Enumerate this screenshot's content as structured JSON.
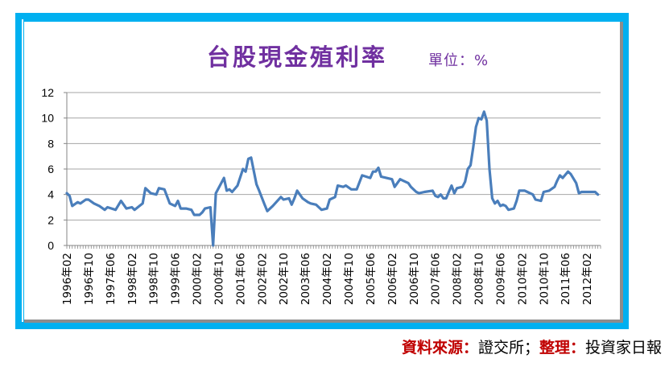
{
  "chart_data": {
    "type": "line",
    "title": "台股現金殖利率",
    "unit_label": "單位：%",
    "xlabel": "",
    "ylabel": "",
    "x_unit": "months since 1996年02",
    "xlim": [
      0,
      197
    ],
    "ylim": [
      0,
      12
    ],
    "yticks": [
      0,
      2,
      4,
      6,
      8,
      10,
      12
    ],
    "grid": true,
    "xtick_step_months": 8,
    "xtick_labels": [
      "1996年02",
      "1996年10",
      "1997年06",
      "1998年02",
      "1998年10",
      "1999年06",
      "2000年02",
      "2000年10",
      "2001年06",
      "2002年02",
      "2002年10",
      "2003年06",
      "2004年02",
      "2004年10",
      "2005年06",
      "2006年02",
      "2006年10",
      "2007年06",
      "2008年02",
      "2008年10",
      "2009年06",
      "2010年02",
      "2010年10",
      "2011年06",
      "2012年02"
    ],
    "series": [
      {
        "name": "現金殖利率",
        "color": "#4a7ebb",
        "points": [
          [
            0,
            4.1
          ],
          [
            1,
            3.9
          ],
          [
            2,
            3.1
          ],
          [
            4,
            3.4
          ],
          [
            5,
            3.3
          ],
          [
            7,
            3.6
          ],
          [
            8,
            3.6
          ],
          [
            10,
            3.3
          ],
          [
            12,
            3.1
          ],
          [
            14,
            2.8
          ],
          [
            15,
            3.0
          ],
          [
            18,
            2.8
          ],
          [
            20,
            3.5
          ],
          [
            22,
            2.9
          ],
          [
            24,
            3.0
          ],
          [
            25,
            2.8
          ],
          [
            28,
            3.3
          ],
          [
            29,
            4.5
          ],
          [
            31,
            4.1
          ],
          [
            33,
            4.0
          ],
          [
            34,
            4.5
          ],
          [
            36,
            4.4
          ],
          [
            38,
            3.3
          ],
          [
            40,
            3.1
          ],
          [
            41,
            3.5
          ],
          [
            42,
            2.9
          ],
          [
            44,
            2.9
          ],
          [
            46,
            2.8
          ],
          [
            47,
            2.4
          ],
          [
            49,
            2.4
          ],
          [
            50,
            2.6
          ],
          [
            51,
            2.9
          ],
          [
            53,
            3.0
          ],
          [
            54,
            0.0
          ],
          [
            55,
            4.1
          ],
          [
            56,
            4.5
          ],
          [
            58,
            5.3
          ],
          [
            59,
            4.3
          ],
          [
            60,
            4.4
          ],
          [
            61,
            4.2
          ],
          [
            63,
            4.7
          ],
          [
            65,
            6.0
          ],
          [
            66,
            5.8
          ],
          [
            67,
            6.8
          ],
          [
            68,
            6.9
          ],
          [
            70,
            4.8
          ],
          [
            71,
            4.3
          ],
          [
            73,
            3.2
          ],
          [
            74,
            2.7
          ],
          [
            76,
            3.1
          ],
          [
            79,
            3.8
          ],
          [
            80,
            3.6
          ],
          [
            82,
            3.7
          ],
          [
            83,
            3.2
          ],
          [
            84,
            3.7
          ],
          [
            85,
            4.3
          ],
          [
            87,
            3.7
          ],
          [
            89,
            3.4
          ],
          [
            90,
            3.3
          ],
          [
            92,
            3.2
          ],
          [
            94,
            2.8
          ],
          [
            96,
            2.9
          ],
          [
            97,
            3.6
          ],
          [
            99,
            3.8
          ],
          [
            100,
            4.7
          ],
          [
            102,
            4.6
          ],
          [
            103,
            4.7
          ],
          [
            105,
            4.4
          ],
          [
            107,
            4.4
          ],
          [
            109,
            5.5
          ],
          [
            112,
            5.3
          ],
          [
            113,
            5.8
          ],
          [
            114,
            5.8
          ],
          [
            115,
            6.1
          ],
          [
            116,
            5.4
          ],
          [
            118,
            5.3
          ],
          [
            120,
            5.2
          ],
          [
            121,
            4.6
          ],
          [
            123,
            5.2
          ],
          [
            124,
            5.1
          ],
          [
            126,
            4.9
          ],
          [
            127,
            4.6
          ],
          [
            129,
            4.2
          ],
          [
            130,
            4.1
          ],
          [
            132,
            4.2
          ],
          [
            135,
            4.3
          ],
          [
            136,
            3.9
          ],
          [
            137,
            3.8
          ],
          [
            138,
            4.0
          ],
          [
            139,
            3.7
          ],
          [
            140,
            3.7
          ],
          [
            141,
            4.2
          ],
          [
            142,
            4.7
          ],
          [
            143,
            4.1
          ],
          [
            144,
            4.5
          ],
          [
            146,
            4.6
          ],
          [
            147,
            5.0
          ],
          [
            148,
            6.0
          ],
          [
            149,
            6.3
          ],
          [
            150,
            7.7
          ],
          [
            151,
            9.3
          ],
          [
            152,
            10.0
          ],
          [
            153,
            9.9
          ],
          [
            154,
            10.5
          ],
          [
            155,
            9.8
          ],
          [
            156,
            6.0
          ],
          [
            157,
            3.7
          ],
          [
            158,
            3.3
          ],
          [
            159,
            3.5
          ],
          [
            160,
            3.1
          ],
          [
            161,
            3.2
          ],
          [
            162,
            3.1
          ],
          [
            163,
            2.8
          ],
          [
            165,
            2.9
          ],
          [
            166,
            3.5
          ],
          [
            167,
            4.3
          ],
          [
            169,
            4.3
          ],
          [
            170,
            4.2
          ],
          [
            172,
            4.0
          ],
          [
            173,
            3.6
          ],
          [
            175,
            3.5
          ],
          [
            176,
            4.2
          ],
          [
            178,
            4.3
          ],
          [
            180,
            4.6
          ],
          [
            181,
            5.1
          ],
          [
            182,
            5.5
          ],
          [
            183,
            5.3
          ],
          [
            185,
            5.8
          ],
          [
            186,
            5.6
          ],
          [
            188,
            4.9
          ],
          [
            189,
            4.1
          ],
          [
            190,
            4.2
          ],
          [
            193,
            4.2
          ],
          [
            195,
            4.2
          ],
          [
            196,
            4.0
          ]
        ]
      }
    ]
  },
  "source": {
    "label1": "資料來源：",
    "value1": "證交所；",
    "label2": "整理：",
    "value2": "投資家日報"
  }
}
